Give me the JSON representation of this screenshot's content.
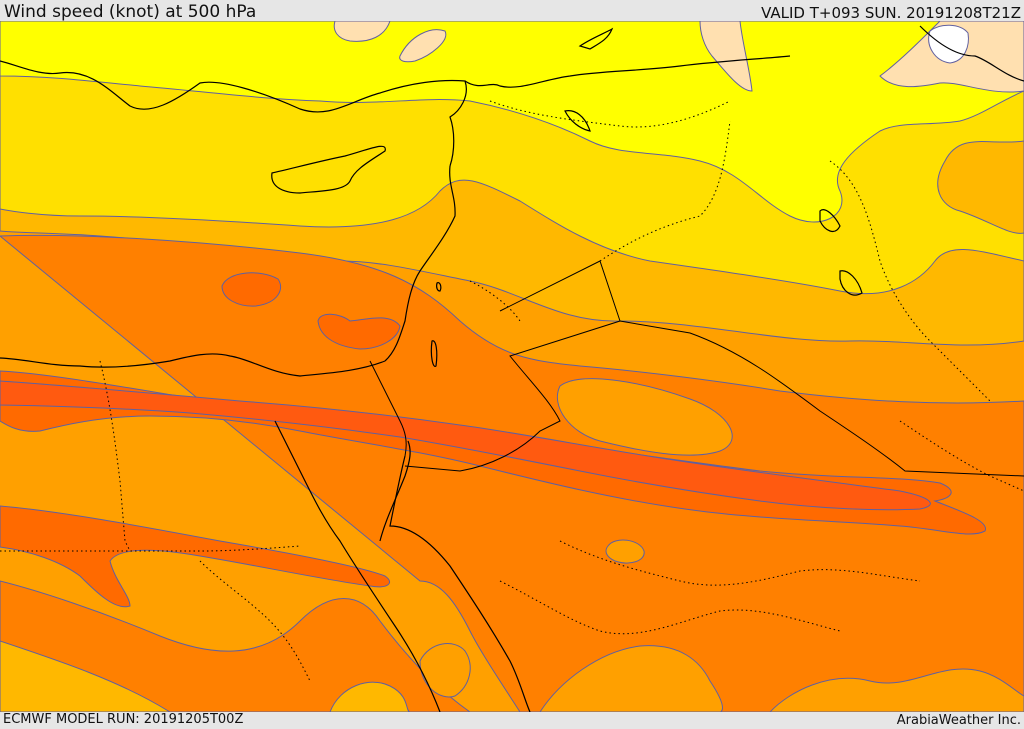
{
  "header": {
    "title": "Wind speed (knot) at 500 hPa",
    "valid_time": "VALID T+093 SUN. 20191208T21Z"
  },
  "footer": {
    "model_run": "ECMWF MODEL RUN: 20191205T00Z",
    "credit": "ArabiaWeather Inc."
  },
  "map": {
    "variable": "wind speed",
    "level": "500 hPa",
    "unit": "knot",
    "colors": {
      "band_lightest": "#ffe0b0",
      "band_yellow": "#ffff00",
      "band_gold": "#ffe000",
      "band_amber": "#ffb800",
      "band_orange_light": "#ffa000",
      "band_orange": "#ff8000",
      "band_orange_dark": "#ff6a00",
      "band_red_orange": "#ff5a10",
      "contour_line": "#6060a0",
      "coastline": "#000000",
      "border": "#000000"
    }
  }
}
